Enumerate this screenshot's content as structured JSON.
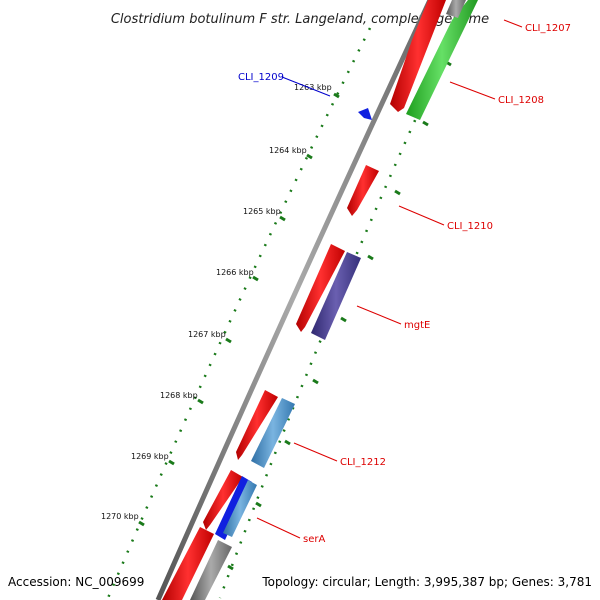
{
  "title": "Clostridium botulinum F str. Langeland, complete genome",
  "footer": {
    "accession": "Accession: NC_009699",
    "summary": "Topology: circular; Length: 3,995,387 bp; Genes: 3,781"
  },
  "ticks": [
    {
      "label": "1263 kbp"
    },
    {
      "label": "1264 kbp"
    },
    {
      "label": "1265 kbp"
    },
    {
      "label": "1266 kbp"
    },
    {
      "label": "1267 kbp"
    },
    {
      "label": "1268 kbp"
    },
    {
      "label": "1269 kbp"
    },
    {
      "label": "1270 kbp"
    }
  ],
  "genes": [
    {
      "label": "CLI_1207",
      "color": "#dd0000"
    },
    {
      "label": "CLI_1208",
      "color": "#dd0000"
    },
    {
      "label": "CLI_1209",
      "color": "#0000cc"
    },
    {
      "label": "CLI_1210",
      "color": "#dd0000"
    },
    {
      "label": "mgtE",
      "color": "#dd0000"
    },
    {
      "label": "CLI_1212",
      "color": "#dd0000"
    },
    {
      "label": "serA",
      "color": "#dd0000"
    }
  ],
  "colors": {
    "forward_cds": "#ff1a1a",
    "reverse_green": "#33cc33",
    "reverse_purple": "#4b3f8f",
    "reverse_steel": "#4a90c8",
    "reverse_blue": "#1020e0",
    "backbone": "#777777",
    "tick_green": "#1a7a1a"
  }
}
